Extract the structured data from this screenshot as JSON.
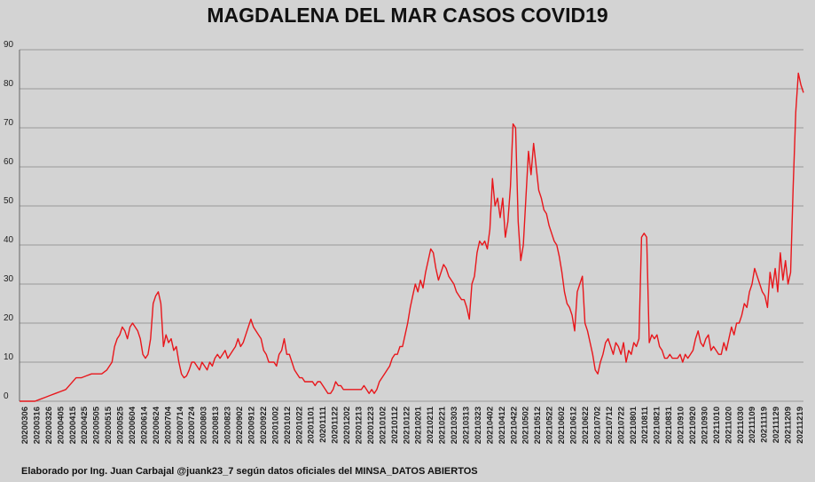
{
  "chart_data": {
    "type": "line",
    "title": "MAGDALENA DEL MAR CASOS COVID19",
    "xlabel": "",
    "ylabel": "",
    "ylim": [
      0,
      90
    ],
    "y_ticks": [
      0,
      10,
      20,
      30,
      40,
      50,
      60,
      70,
      80,
      90
    ],
    "grid": "horizontal",
    "legend": "none",
    "x_tick_labels": [
      "20200306",
      "20200316",
      "20200326",
      "20200405",
      "20200415",
      "20200425",
      "20200505",
      "20200515",
      "20200525",
      "20200604",
      "20200614",
      "20200624",
      "20200704",
      "20200714",
      "20200724",
      "20200803",
      "20200813",
      "20200823",
      "20200902",
      "20200912",
      "20200922",
      "20201002",
      "20201012",
      "20201022",
      "20201101",
      "20201111",
      "20201122",
      "20201202",
      "20201213",
      "20201223",
      "20210102",
      "20210112",
      "20210122",
      "20210201",
      "20210211",
      "20210221",
      "20210303",
      "20210313",
      "20210323",
      "20210402",
      "20210412",
      "20210422",
      "20210502",
      "20210512",
      "20210522",
      "20210602",
      "20210612",
      "20210622",
      "20210702",
      "20210712",
      "20210722",
      "20210801",
      "20210811",
      "20210821",
      "20210831",
      "20210910",
      "20210920",
      "20210930",
      "20211010",
      "20211020",
      "20211030",
      "20211109",
      "20211119",
      "20211129",
      "20211209",
      "20211219"
    ],
    "series": [
      {
        "name": "",
        "color": "#e8161b",
        "points": [
          [
            0,
            0
          ],
          [
            2,
            0
          ],
          [
            4,
            0
          ],
          [
            6,
            0
          ],
          [
            8,
            0.5
          ],
          [
            10,
            1
          ],
          [
            12,
            1.5
          ],
          [
            14,
            2
          ],
          [
            16,
            2.5
          ],
          [
            18,
            3
          ],
          [
            20,
            4.5
          ],
          [
            22,
            6
          ],
          [
            24,
            6
          ],
          [
            26,
            6.5
          ],
          [
            28,
            7
          ],
          [
            30,
            7
          ],
          [
            32,
            7
          ],
          [
            34,
            8
          ],
          [
            36,
            10
          ],
          [
            37,
            14
          ],
          [
            38,
            16
          ],
          [
            39,
            17
          ],
          [
            40,
            19
          ],
          [
            41,
            18
          ],
          [
            42,
            16
          ],
          [
            43,
            19
          ],
          [
            44,
            20
          ],
          [
            45,
            19
          ],
          [
            46,
            18
          ],
          [
            47,
            16
          ],
          [
            48,
            12
          ],
          [
            49,
            11
          ],
          [
            50,
            12
          ],
          [
            51,
            16
          ],
          [
            52,
            25
          ],
          [
            53,
            27
          ],
          [
            54,
            28
          ],
          [
            55,
            25
          ],
          [
            56,
            14
          ],
          [
            57,
            17
          ],
          [
            58,
            15
          ],
          [
            59,
            16
          ],
          [
            60,
            13
          ],
          [
            61,
            14
          ],
          [
            62,
            10
          ],
          [
            63,
            7
          ],
          [
            64,
            6
          ],
          [
            65,
            6.5
          ],
          [
            66,
            8
          ],
          [
            67,
            10
          ],
          [
            68,
            10
          ],
          [
            69,
            9
          ],
          [
            70,
            8
          ],
          [
            71,
            10
          ],
          [
            72,
            9
          ],
          [
            73,
            8
          ],
          [
            74,
            10
          ],
          [
            75,
            9
          ],
          [
            76,
            11
          ],
          [
            77,
            12
          ],
          [
            78,
            11
          ],
          [
            79,
            12
          ],
          [
            80,
            13
          ],
          [
            81,
            11
          ],
          [
            82,
            12
          ],
          [
            83,
            13
          ],
          [
            84,
            14
          ],
          [
            85,
            16
          ],
          [
            86,
            14
          ],
          [
            87,
            15
          ],
          [
            88,
            17
          ],
          [
            89,
            19
          ],
          [
            90,
            21
          ],
          [
            91,
            19
          ],
          [
            92,
            18
          ],
          [
            93,
            17
          ],
          [
            94,
            16
          ],
          [
            95,
            13
          ],
          [
            96,
            12
          ],
          [
            97,
            10
          ],
          [
            98,
            10
          ],
          [
            99,
            10
          ],
          [
            100,
            9
          ],
          [
            101,
            12
          ],
          [
            102,
            13
          ],
          [
            103,
            16
          ],
          [
            104,
            12
          ],
          [
            105,
            12
          ],
          [
            106,
            10
          ],
          [
            107,
            8
          ],
          [
            108,
            7
          ],
          [
            109,
            6
          ],
          [
            110,
            6
          ],
          [
            111,
            5
          ],
          [
            112,
            5
          ],
          [
            113,
            5
          ],
          [
            114,
            5
          ],
          [
            115,
            4
          ],
          [
            116,
            5
          ],
          [
            117,
            5
          ],
          [
            118,
            4
          ],
          [
            119,
            3
          ],
          [
            120,
            2
          ],
          [
            121,
            2
          ],
          [
            122,
            3
          ],
          [
            123,
            5
          ],
          [
            124,
            4
          ],
          [
            125,
            4
          ],
          [
            126,
            3
          ],
          [
            127,
            3
          ],
          [
            128,
            3
          ],
          [
            129,
            3
          ],
          [
            130,
            3
          ],
          [
            131,
            3
          ],
          [
            132,
            3
          ],
          [
            133,
            3
          ],
          [
            134,
            4
          ],
          [
            135,
            3
          ],
          [
            136,
            2
          ],
          [
            137,
            3
          ],
          [
            138,
            2
          ],
          [
            139,
            3
          ],
          [
            140,
            5
          ],
          [
            141,
            6
          ],
          [
            142,
            7
          ],
          [
            143,
            8
          ],
          [
            144,
            9
          ],
          [
            145,
            11
          ],
          [
            146,
            12
          ],
          [
            147,
            12
          ],
          [
            148,
            14
          ],
          [
            149,
            14
          ],
          [
            150,
            17
          ],
          [
            151,
            20
          ],
          [
            152,
            24
          ],
          [
            153,
            27
          ],
          [
            154,
            30
          ],
          [
            155,
            28
          ],
          [
            156,
            31
          ],
          [
            157,
            29
          ],
          [
            158,
            33
          ],
          [
            159,
            36
          ],
          [
            160,
            39
          ],
          [
            161,
            38
          ],
          [
            162,
            34
          ],
          [
            163,
            31
          ],
          [
            164,
            33
          ],
          [
            165,
            35
          ],
          [
            166,
            34
          ],
          [
            167,
            32
          ],
          [
            168,
            31
          ],
          [
            169,
            30
          ],
          [
            170,
            28
          ],
          [
            171,
            27
          ],
          [
            172,
            26
          ],
          [
            173,
            26
          ],
          [
            174,
            24
          ],
          [
            175,
            21
          ],
          [
            176,
            30
          ],
          [
            177,
            32
          ],
          [
            178,
            38
          ],
          [
            179,
            41
          ],
          [
            180,
            40
          ],
          [
            181,
            41
          ],
          [
            182,
            39
          ],
          [
            183,
            44
          ],
          [
            184,
            57
          ],
          [
            185,
            50
          ],
          [
            186,
            52
          ],
          [
            187,
            47
          ],
          [
            188,
            52
          ],
          [
            189,
            42
          ],
          [
            190,
            46
          ],
          [
            191,
            55
          ],
          [
            192,
            71
          ],
          [
            193,
            70
          ],
          [
            194,
            46
          ],
          [
            195,
            36
          ],
          [
            196,
            40
          ],
          [
            197,
            52
          ],
          [
            198,
            64
          ],
          [
            199,
            58
          ],
          [
            200,
            66
          ],
          [
            201,
            60
          ],
          [
            202,
            54
          ],
          [
            203,
            52
          ],
          [
            204,
            49
          ],
          [
            205,
            48
          ],
          [
            206,
            45
          ],
          [
            207,
            43
          ],
          [
            208,
            41
          ],
          [
            209,
            40
          ],
          [
            210,
            37
          ],
          [
            211,
            33
          ],
          [
            212,
            28
          ],
          [
            213,
            25
          ],
          [
            214,
            24
          ],
          [
            215,
            22
          ],
          [
            216,
            18
          ],
          [
            217,
            28
          ],
          [
            218,
            30
          ],
          [
            219,
            32
          ],
          [
            220,
            20
          ],
          [
            221,
            18
          ],
          [
            222,
            15
          ],
          [
            223,
            12
          ],
          [
            224,
            8
          ],
          [
            225,
            7
          ],
          [
            226,
            10
          ],
          [
            227,
            12
          ],
          [
            228,
            15
          ],
          [
            229,
            16
          ],
          [
            230,
            14
          ],
          [
            231,
            12
          ],
          [
            232,
            15
          ],
          [
            233,
            14
          ],
          [
            234,
            12
          ],
          [
            235,
            15
          ],
          [
            236,
            10
          ],
          [
            237,
            13
          ],
          [
            238,
            12
          ],
          [
            239,
            15
          ],
          [
            240,
            14
          ],
          [
            241,
            16
          ],
          [
            242,
            42
          ],
          [
            243,
            43
          ],
          [
            244,
            42
          ],
          [
            245,
            15
          ],
          [
            246,
            17
          ],
          [
            247,
            16
          ],
          [
            248,
            17
          ],
          [
            249,
            14
          ],
          [
            250,
            13
          ],
          [
            251,
            11
          ],
          [
            252,
            11
          ],
          [
            253,
            12
          ],
          [
            254,
            11
          ],
          [
            255,
            11
          ],
          [
            256,
            11
          ],
          [
            257,
            12
          ],
          [
            258,
            10
          ],
          [
            259,
            12
          ],
          [
            260,
            11
          ],
          [
            261,
            12
          ],
          [
            262,
            13
          ],
          [
            263,
            16
          ],
          [
            264,
            18
          ],
          [
            265,
            15
          ],
          [
            266,
            14
          ],
          [
            267,
            16
          ],
          [
            268,
            17
          ],
          [
            269,
            13
          ],
          [
            270,
            14
          ],
          [
            271,
            13
          ],
          [
            272,
            12
          ],
          [
            273,
            12
          ],
          [
            274,
            15
          ],
          [
            275,
            13
          ],
          [
            276,
            16
          ],
          [
            277,
            19
          ],
          [
            278,
            17
          ],
          [
            279,
            20
          ],
          [
            280,
            20
          ],
          [
            281,
            22
          ],
          [
            282,
            25
          ],
          [
            283,
            24
          ],
          [
            284,
            28
          ],
          [
            285,
            30
          ],
          [
            286,
            34
          ],
          [
            287,
            32
          ],
          [
            288,
            30
          ],
          [
            289,
            28
          ],
          [
            290,
            27
          ],
          [
            291,
            24
          ],
          [
            292,
            33
          ],
          [
            293,
            29
          ],
          [
            294,
            34
          ],
          [
            295,
            28
          ],
          [
            296,
            38
          ],
          [
            297,
            31
          ],
          [
            298,
            36
          ],
          [
            299,
            30
          ],
          [
            300,
            33
          ],
          [
            301,
            55
          ],
          [
            302,
            74
          ],
          [
            303,
            84
          ],
          [
            304,
            81
          ],
          [
            305,
            79
          ]
        ]
      }
    ]
  },
  "footer_text": "Elaborado por Ing. Juan Carbajal @juank23_7 según datos oficiales del MINSA_DATOS ABIERTOS"
}
